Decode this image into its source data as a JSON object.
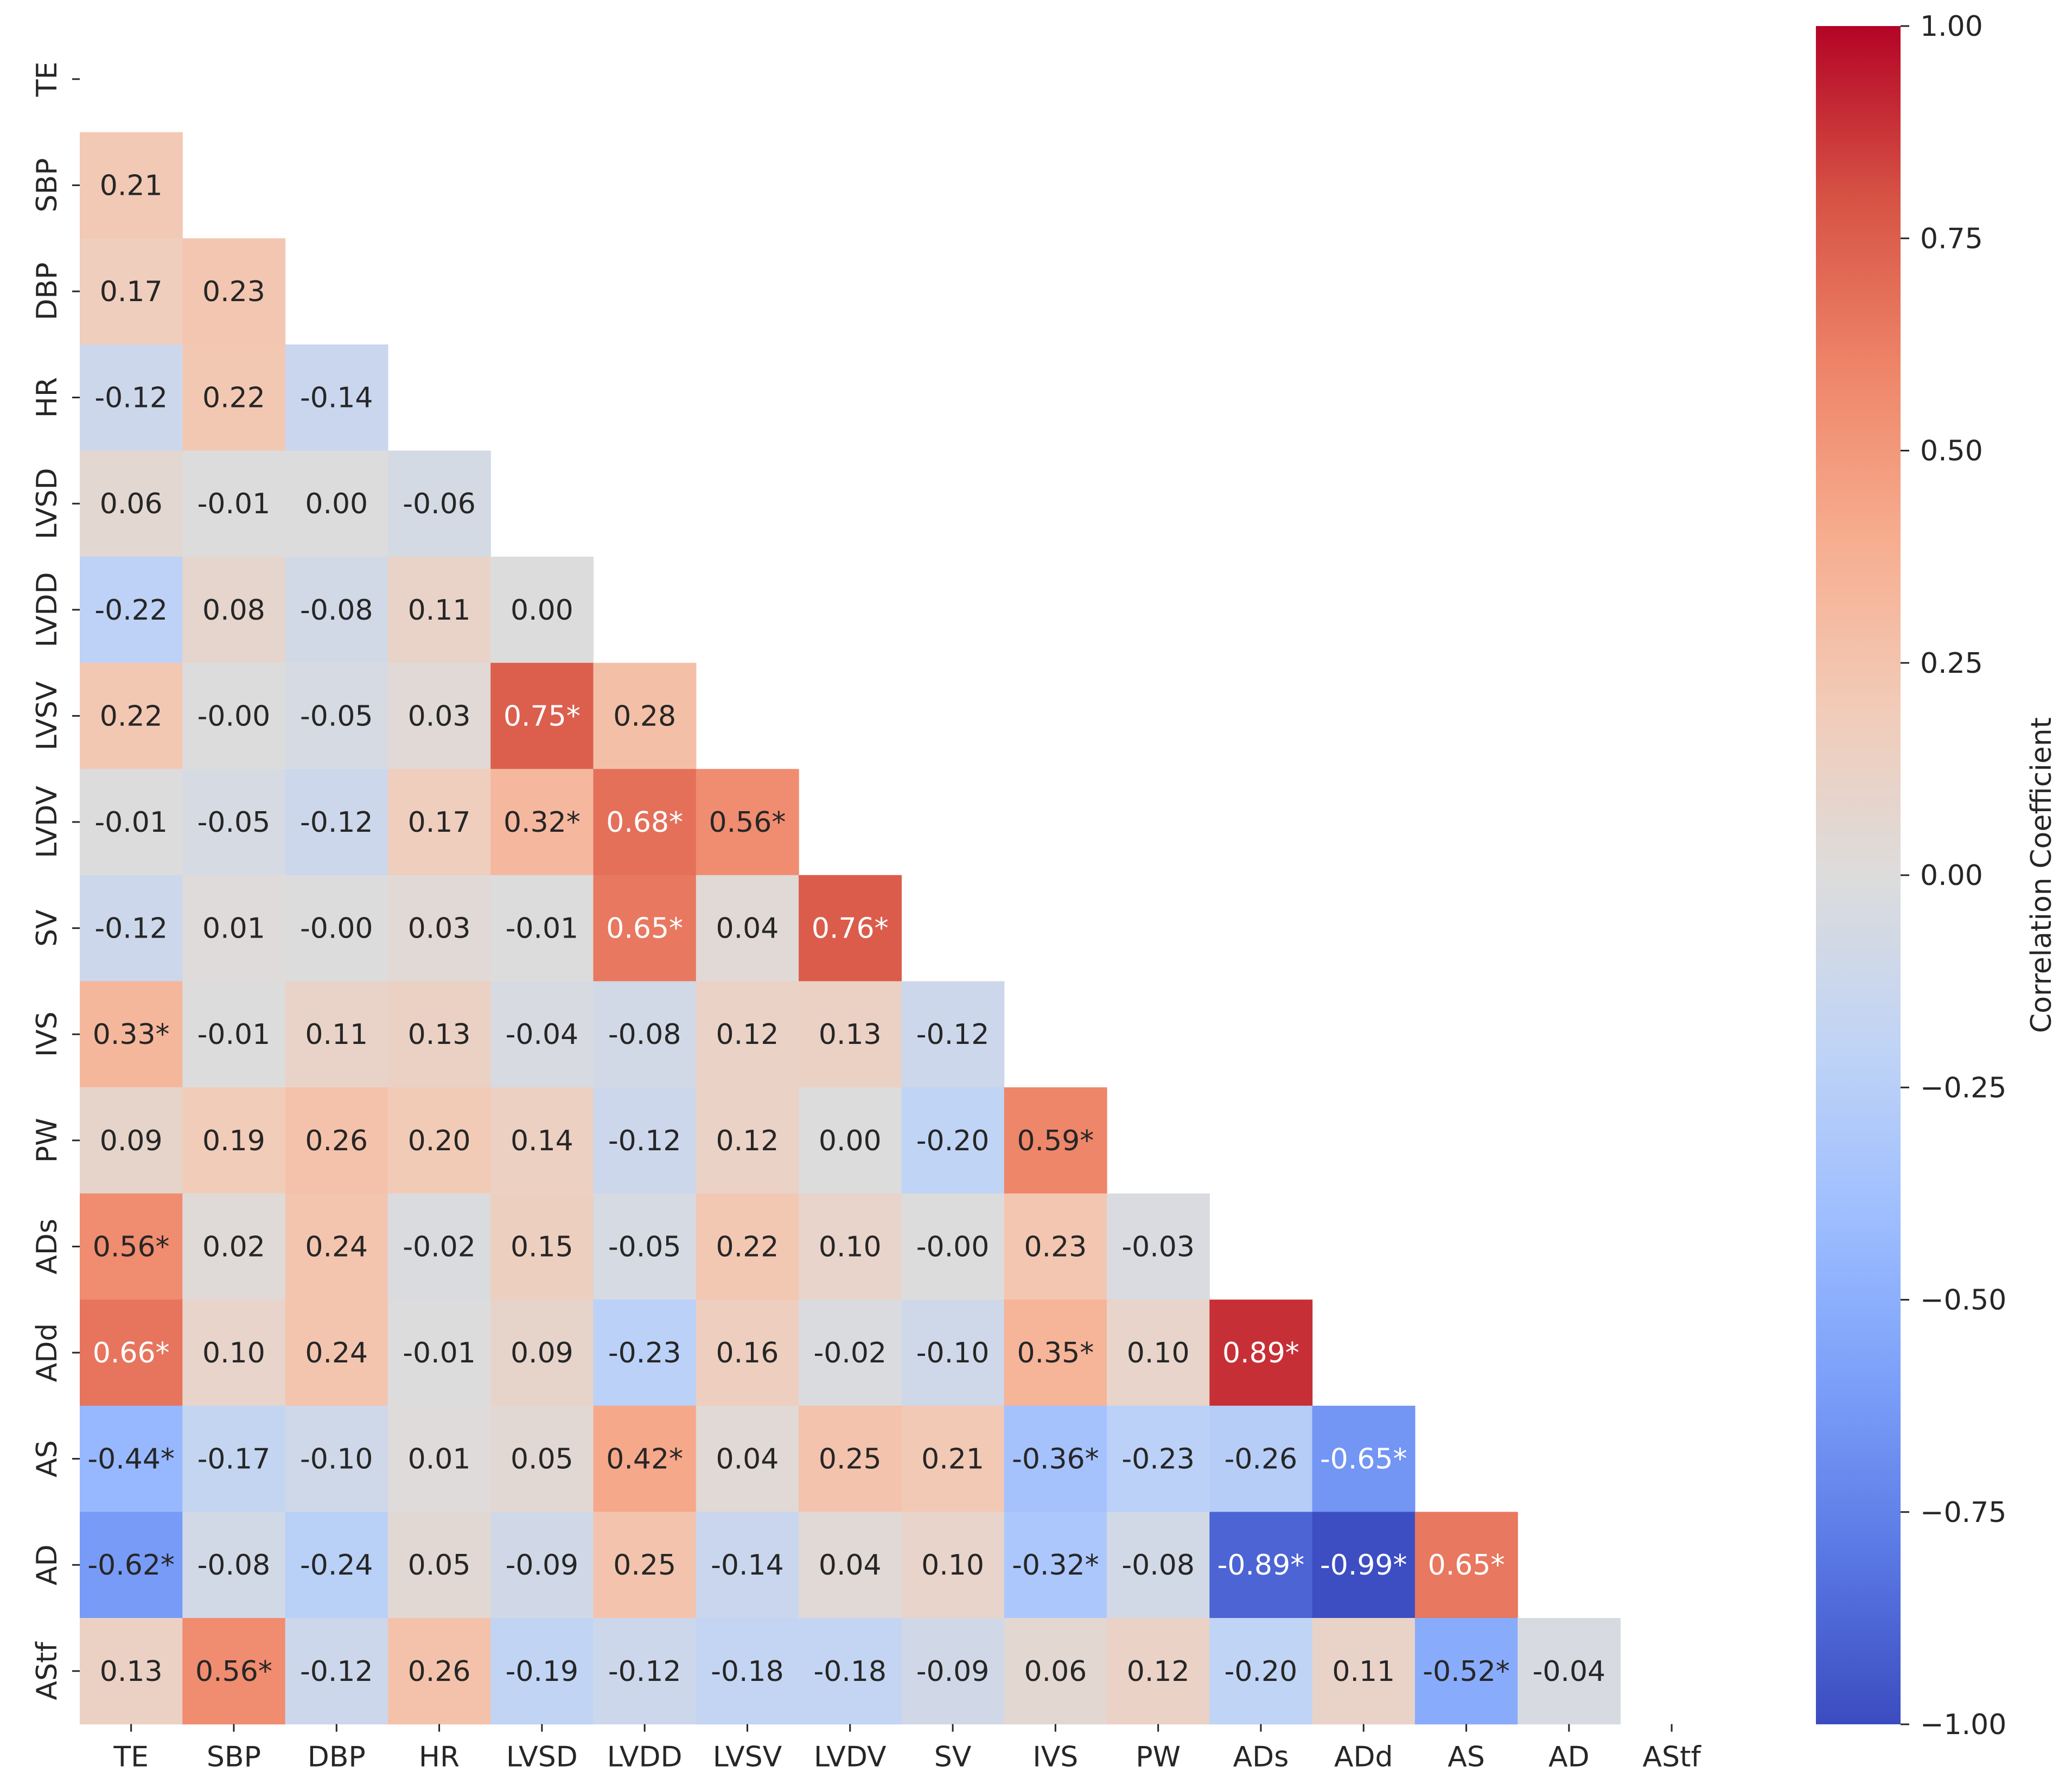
{
  "chart_data": {
    "type": "heatmap",
    "title": "",
    "variables": [
      "TE",
      "SBP",
      "DBP",
      "HR",
      "LVSD",
      "LVDD",
      "LVSV",
      "LVDV",
      "SV",
      "IVS",
      "PW",
      "ADs",
      "ADd",
      "AS",
      "AD",
      "AStf"
    ],
    "mask": "upper-triangle-including-diagonal",
    "cells": [
      [
        "TE",
        "SBP",
        "DBP",
        "HR",
        "LVSD",
        "LVDD",
        "LVSV",
        "LVDV",
        "SV",
        "IVS",
        "PW",
        "ADs",
        "ADd",
        "AS",
        "AD",
        "AStf"
      ]
    ],
    "matrix": [
      [],
      [
        0.21
      ],
      [
        0.17,
        0.23
      ],
      [
        -0.12,
        0.22,
        -0.14
      ],
      [
        0.06,
        -0.01,
        0.0,
        -0.06
      ],
      [
        -0.22,
        0.08,
        -0.08,
        0.11,
        0.0
      ],
      [
        0.22,
        -0.0,
        -0.05,
        0.03,
        0.75,
        0.28
      ],
      [
        -0.01,
        -0.05,
        -0.12,
        0.17,
        0.32,
        0.68,
        0.56
      ],
      [
        -0.12,
        0.01,
        -0.0,
        0.03,
        -0.01,
        0.65,
        0.04,
        0.76
      ],
      [
        0.33,
        -0.01,
        0.11,
        0.13,
        -0.04,
        -0.08,
        0.12,
        0.13,
        -0.12
      ],
      [
        0.09,
        0.19,
        0.26,
        0.2,
        0.14,
        -0.12,
        0.12,
        0.0,
        -0.2,
        0.59
      ],
      [
        0.56,
        0.02,
        0.24,
        -0.02,
        0.15,
        -0.05,
        0.22,
        0.1,
        -0.0,
        0.23,
        -0.03
      ],
      [
        0.66,
        0.1,
        0.24,
        -0.01,
        0.09,
        -0.23,
        0.16,
        -0.02,
        -0.1,
        0.35,
        0.1,
        0.89
      ],
      [
        -0.44,
        -0.17,
        -0.1,
        0.01,
        0.05,
        0.42,
        0.04,
        0.25,
        0.21,
        -0.36,
        -0.23,
        -0.26,
        -0.65
      ],
      [
        -0.62,
        -0.08,
        -0.24,
        0.05,
        -0.09,
        0.25,
        -0.14,
        0.04,
        0.1,
        -0.32,
        -0.08,
        -0.89,
        -0.99,
        0.65
      ],
      [
        0.13,
        0.56,
        -0.12,
        0.26,
        -0.19,
        -0.12,
        -0.18,
        -0.18,
        -0.09,
        0.06,
        0.12,
        -0.2,
        0.11,
        -0.52,
        -0.04
      ]
    ],
    "labels": [
      [],
      [
        "0.21"
      ],
      [
        "0.17",
        "0.23"
      ],
      [
        "-0.12",
        "0.22",
        "-0.14"
      ],
      [
        "0.06",
        "-0.01",
        "0.00",
        "-0.06"
      ],
      [
        "-0.22",
        "0.08",
        "-0.08",
        "0.11",
        "0.00"
      ],
      [
        "0.22",
        "-0.00",
        "-0.05",
        "0.03",
        "0.75*",
        "0.28"
      ],
      [
        "-0.01",
        "-0.05",
        "-0.12",
        "0.17",
        "0.32*",
        "0.68*",
        "0.56*"
      ],
      [
        "-0.12",
        "0.01",
        "-0.00",
        "0.03",
        "-0.01",
        "0.65*",
        "0.04",
        "0.76*"
      ],
      [
        "0.33*",
        "-0.01",
        "0.11",
        "0.13",
        "-0.04",
        "-0.08",
        "0.12",
        "0.13",
        "-0.12"
      ],
      [
        "0.09",
        "0.19",
        "0.26",
        "0.20",
        "0.14",
        "-0.12",
        "0.12",
        "0.00",
        "-0.20",
        "0.59*"
      ],
      [
        "0.56*",
        "0.02",
        "0.24",
        "-0.02",
        "0.15",
        "-0.05",
        "0.22",
        "0.10",
        "-0.00",
        "0.23",
        "-0.03"
      ],
      [
        "0.66*",
        "0.10",
        "0.24",
        "-0.01",
        "0.09",
        "-0.23",
        "0.16",
        "-0.02",
        "-0.10",
        "0.35*",
        "0.10",
        "0.89*"
      ],
      [
        "-0.44*",
        "-0.17",
        "-0.10",
        "0.01",
        "0.05",
        "0.42*",
        "0.04",
        "0.25",
        "0.21",
        "-0.36*",
        "-0.23",
        "-0.26",
        "-0.65*"
      ],
      [
        "-0.62*",
        "-0.08",
        "-0.24",
        "0.05",
        "-0.09",
        "0.25",
        "-0.14",
        "0.04",
        "0.10",
        "-0.32*",
        "-0.08",
        "-0.89*",
        "-0.99*",
        "0.65*"
      ],
      [
        "0.13",
        "0.56*",
        "-0.12",
        "0.26",
        "-0.19",
        "-0.12",
        "-0.18",
        "-0.18",
        "-0.09",
        "0.06",
        "0.12",
        "-0.20",
        "0.11",
        "-0.52*",
        "-0.04"
      ]
    ],
    "colorbar": {
      "label": "Correlation Coefficient",
      "range": [
        -1.0,
        1.0
      ],
      "ticks": [
        1.0,
        0.75,
        0.5,
        0.25,
        0.0,
        -0.25,
        -0.5,
        -0.75,
        -1.0
      ],
      "tick_labels": [
        "1.00",
        "0.75",
        "0.50",
        "0.25",
        "0.00",
        "−0.25",
        "−0.50",
        "−0.75",
        "−1.00"
      ],
      "colormap": "coolwarm",
      "stops": [
        "#3b4cc0",
        "#5a78e4",
        "#7b9ff9",
        "#9ebeff",
        "#c0d4f5",
        "#dddcdc",
        "#f2cbb7",
        "#f7ac8e",
        "#ee8468",
        "#d65244",
        "#b40426"
      ]
    }
  }
}
